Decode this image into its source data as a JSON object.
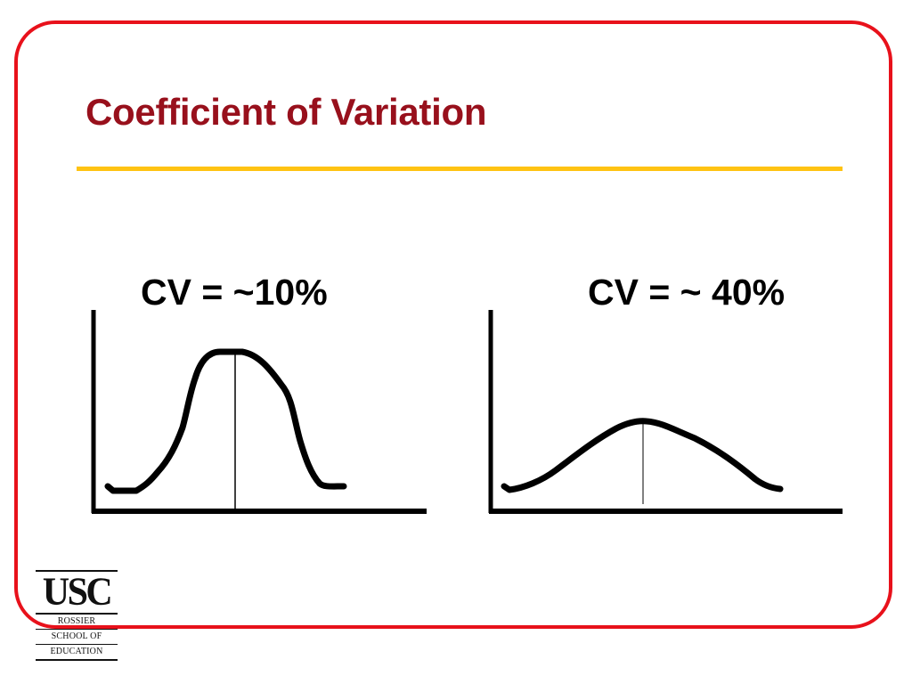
{
  "slide": {
    "title": "Coefficient of Variation",
    "colors": {
      "frame": "#e8111b",
      "title": "#98101c",
      "rule": "#ffc312",
      "curve": "#000000"
    }
  },
  "graphs": [
    {
      "label": "CV = ~10%",
      "shape": "narrow-peaked-curve"
    },
    {
      "label": "CV = ~ 40%",
      "shape": "wide-flat-curve"
    }
  ],
  "logo": {
    "wordmark": "USC",
    "lines": [
      "ROSSIER",
      "SCHOOL OF",
      "EDUCATION"
    ]
  }
}
